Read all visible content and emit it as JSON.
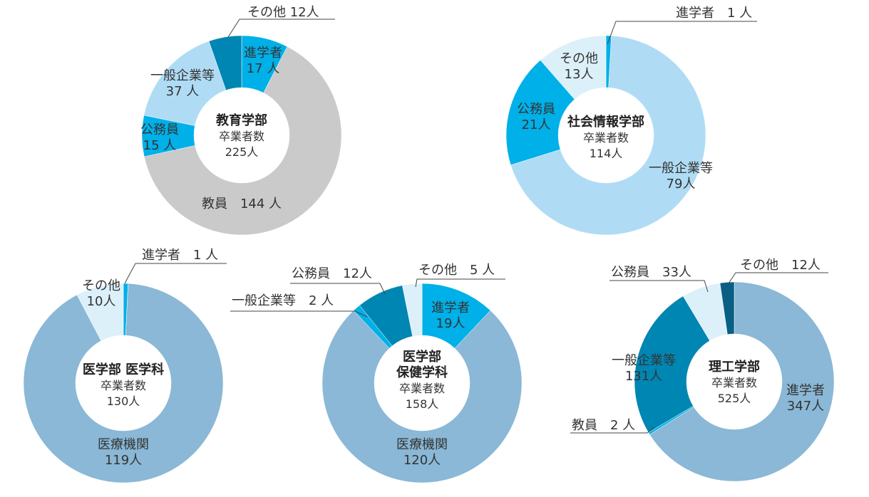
{
  "chart_data": [
    {
      "type": "pie",
      "donut": true,
      "center_title": [
        "教育学部"
      ],
      "center_sub": "卒業者数",
      "center_total": "225人",
      "categories": [
        "進学者",
        "教員",
        "公務員",
        "一般企業等",
        "その他"
      ],
      "values": [
        17,
        144,
        15,
        37,
        12
      ],
      "colors": [
        "#00b0e8",
        "#cacaca",
        "#00b0e8",
        "#afdcf4",
        "#0086b3"
      ],
      "labels": [
        "進学者\n17 人",
        "教員　144 人",
        "公務員\n15 人",
        "一般企業等\n37 人",
        "その他 12人"
      ]
    },
    {
      "type": "pie",
      "donut": true,
      "center_title": [
        "社会情報学部"
      ],
      "center_sub": "卒業者数",
      "center_total": "114人",
      "categories": [
        "進学者",
        "一般企業等",
        "公務員",
        "その他"
      ],
      "values": [
        1,
        79,
        21,
        13
      ],
      "colors": [
        "#00b0e8",
        "#afdcf4",
        "#00b0e8",
        "#dcf0fa"
      ],
      "labels": [
        "進学者　1 人",
        "一般企業等\n79人",
        "公務員\n21人",
        "その他\n13人"
      ]
    },
    {
      "type": "pie",
      "donut": true,
      "center_title": [
        "医学部 医学科"
      ],
      "center_sub": "卒業者数",
      "center_total": "130人",
      "categories": [
        "進学者",
        "医療機関",
        "その他"
      ],
      "values": [
        1,
        119,
        10
      ],
      "colors": [
        "#00b0e8",
        "#8ab8d6",
        "#dcf0fa"
      ],
      "labels": [
        "進学者　1 人",
        "医療機関\n119人",
        "その他\n10人"
      ]
    },
    {
      "type": "pie",
      "donut": true,
      "center_title": [
        "医学部",
        "保健学科"
      ],
      "center_sub": "卒業者数",
      "center_total": "158人",
      "categories": [
        "進学者",
        "医療機関",
        "一般企業等",
        "公務員",
        "その他"
      ],
      "values": [
        19,
        120,
        2,
        12,
        5
      ],
      "colors": [
        "#00b0e8",
        "#8ab8d6",
        "#00b0e8",
        "#0086b3",
        "#dcf0fa"
      ],
      "labels": [
        "進学者\n19人",
        "医療機関\n120人",
        "一般企業等　2 人",
        "公務員　12人",
        "その他　5 人"
      ]
    },
    {
      "type": "pie",
      "donut": true,
      "center_title": [
        "理工学部"
      ],
      "center_sub": "卒業者数",
      "center_total": "525人",
      "categories": [
        "進学者",
        "教員",
        "一般企業等",
        "公務員",
        "その他"
      ],
      "values": [
        347,
        2,
        131,
        33,
        12
      ],
      "colors": [
        "#8ab8d6",
        "#00b0e8",
        "#0086b3",
        "#dcf0fa",
        "#0a5f85"
      ],
      "labels": [
        "進学者\n347人",
        "教員　2 人",
        "一般企業等\n131人",
        "公務員　33人",
        "その他　12人"
      ]
    }
  ]
}
